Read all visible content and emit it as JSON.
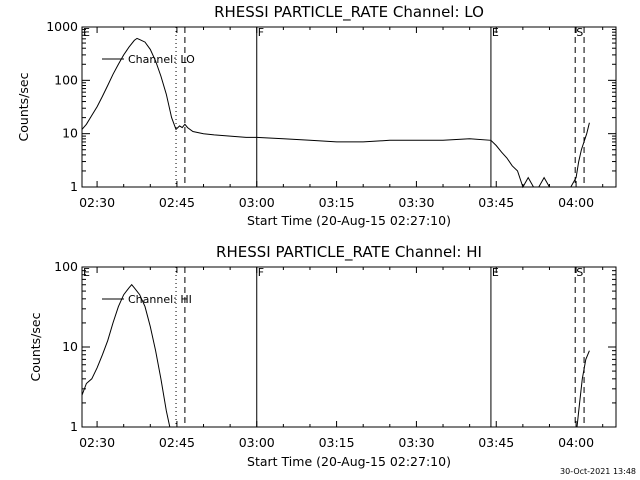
{
  "timestamp_text": "30-Oct-2021 13:48",
  "chart_data": [
    {
      "type": "line",
      "title": "RHESSI PARTICLE_RATE Channel: LO",
      "xlabel": "Start Time (20-Aug-15 02:27:10)",
      "ylabel": "Counts/sec",
      "yscale": "log",
      "xlim": [
        "02:27:10",
        "04:07:30"
      ],
      "ylim": [
        1,
        1000
      ],
      "xticks": [
        "02:30",
        "02:45",
        "03:00",
        "03:15",
        "03:30",
        "03:45",
        "04:00"
      ],
      "yticks": [
        "1",
        "10",
        "100",
        "1000"
      ],
      "legend": {
        "label": "Channel: LO",
        "position": "top-left"
      },
      "event_markers": [
        {
          "label": "E",
          "time": "02:27:10",
          "style": "solid"
        },
        {
          "label": "",
          "time": "02:44:50",
          "style": "dotted"
        },
        {
          "label": "",
          "time": "02:46:30",
          "style": "dashed"
        },
        {
          "label": "F",
          "time": "03:00:00",
          "style": "solid"
        },
        {
          "label": "E",
          "time": "03:44:00",
          "style": "solid"
        },
        {
          "label": "S",
          "time": "03:59:50",
          "style": "dashed"
        },
        {
          "label": "",
          "time": "04:01:30",
          "style": "dashed"
        }
      ],
      "series": [
        {
          "name": "Channel: LO",
          "points": [
            [
              "02:27:10",
              12
            ],
            [
              "02:28:00",
              15
            ],
            [
              "02:29:00",
              22
            ],
            [
              "02:30:00",
              32
            ],
            [
              "02:31:00",
              50
            ],
            [
              "02:32:00",
              80
            ],
            [
              "02:33:00",
              130
            ],
            [
              "02:34:00",
              200
            ],
            [
              "02:35:00",
              300
            ],
            [
              "02:36:00",
              420
            ],
            [
              "02:37:00",
              560
            ],
            [
              "02:37:30",
              610
            ],
            [
              "02:38:00",
              580
            ],
            [
              "02:39:00",
              520
            ],
            [
              "02:40:00",
              380
            ],
            [
              "02:41:00",
              230
            ],
            [
              "02:42:00",
              120
            ],
            [
              "02:43:00",
              55
            ],
            [
              "02:44:00",
              20
            ],
            [
              "02:44:50",
              12
            ],
            [
              "02:45:30",
              14
            ],
            [
              "02:46:00",
              13
            ],
            [
              "02:46:30",
              15
            ],
            [
              "02:47:00",
              13
            ],
            [
              "02:48:00",
              11
            ],
            [
              "02:50:00",
              10
            ],
            [
              "02:52:00",
              9.5
            ],
            [
              "02:55:00",
              9
            ],
            [
              "02:58:00",
              8.5
            ],
            [
              "03:00:00",
              8.5
            ],
            [
              "03:05:00",
              8
            ],
            [
              "03:10:00",
              7.5
            ],
            [
              "03:15:00",
              7
            ],
            [
              "03:20:00",
              7
            ],
            [
              "03:25:00",
              7.5
            ],
            [
              "03:30:00",
              7.5
            ],
            [
              "03:35:00",
              7.5
            ],
            [
              "03:40:00",
              8
            ],
            [
              "03:44:00",
              7.5
            ],
            [
              "03:45:00",
              6
            ],
            [
              "03:46:00",
              4.5
            ],
            [
              "03:47:00",
              3.5
            ],
            [
              "03:48:00",
              2.5
            ],
            [
              "03:49:00",
              2
            ],
            [
              "03:50:00",
              1
            ],
            [
              "03:51:00",
              1.5
            ],
            [
              "03:52:00",
              1
            ],
            [
              "03:53:00",
              1
            ],
            [
              "03:54:00",
              1.5
            ],
            [
              "03:55:00",
              1
            ],
            [
              "03:57:00",
              1
            ],
            [
              "03:59:00",
              1
            ],
            [
              "04:00:00",
              1.5
            ],
            [
              "04:00:30",
              3
            ],
            [
              "04:01:00",
              5
            ],
            [
              "04:02:00",
              10
            ],
            [
              "04:02:30",
              16
            ]
          ]
        }
      ]
    },
    {
      "type": "line",
      "title": "RHESSI PARTICLE_RATE Channel: HI",
      "xlabel": "Start Time (20-Aug-15 02:27:10)",
      "ylabel": "Counts/sec",
      "yscale": "log",
      "xlim": [
        "02:27:10",
        "04:07:30"
      ],
      "ylim": [
        1,
        100
      ],
      "xticks": [
        "02:30",
        "02:45",
        "03:00",
        "03:15",
        "03:30",
        "03:45",
        "04:00"
      ],
      "yticks": [
        "1",
        "10",
        "100"
      ],
      "legend": {
        "label": "Channel: HI",
        "position": "top-left"
      },
      "event_markers": [
        {
          "label": "E",
          "time": "02:27:10",
          "style": "solid"
        },
        {
          "label": "",
          "time": "02:44:50",
          "style": "dotted"
        },
        {
          "label": "",
          "time": "02:46:30",
          "style": "dashed"
        },
        {
          "label": "F",
          "time": "03:00:00",
          "style": "solid"
        },
        {
          "label": "E",
          "time": "03:44:00",
          "style": "solid"
        },
        {
          "label": "S",
          "time": "03:59:50",
          "style": "dashed"
        },
        {
          "label": "",
          "time": "04:01:30",
          "style": "dashed"
        }
      ],
      "series": [
        {
          "name": "Channel: HI",
          "segments": [
            [
              [
                "02:27:10",
                2.5
              ],
              [
                "02:28:00",
                3.5
              ],
              [
                "02:29:00",
                4
              ],
              [
                "02:30:00",
                5.5
              ],
              [
                "02:31:00",
                8
              ],
              [
                "02:32:00",
                12
              ],
              [
                "02:33:00",
                20
              ],
              [
                "02:34:00",
                32
              ],
              [
                "02:35:00",
                45
              ],
              [
                "02:36:00",
                55
              ],
              [
                "02:36:30",
                60
              ],
              [
                "02:37:00",
                55
              ],
              [
                "02:38:00",
                45
              ],
              [
                "02:39:00",
                32
              ],
              [
                "02:40:00",
                18
              ],
              [
                "02:41:00",
                9
              ],
              [
                "02:42:00",
                4
              ],
              [
                "02:43:00",
                1.6
              ],
              [
                "02:43:40",
                1
              ]
            ],
            [
              [
                "04:00:10",
                1
              ],
              [
                "04:00:40",
                2
              ],
              [
                "04:01:10",
                4
              ],
              [
                "04:01:50",
                7
              ],
              [
                "04:02:30",
                9
              ]
            ]
          ]
        }
      ]
    }
  ]
}
